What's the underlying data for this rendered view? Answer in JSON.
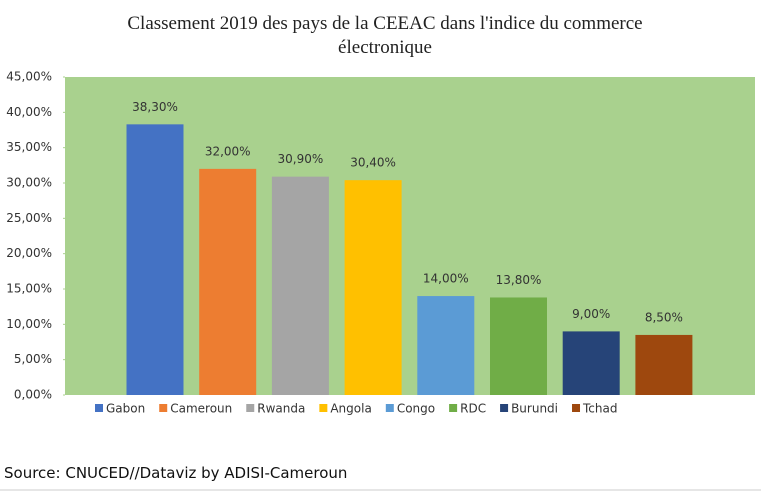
{
  "chart_data": {
    "type": "bar",
    "title": "Classement 2019 des pays de la CEEAC dans l'indice du commerce électronique",
    "categories": [
      "Gabon",
      "Cameroun",
      "Rwanda",
      "Angola",
      "Congo",
      "RDC",
      "Burundi",
      "Tchad"
    ],
    "values": [
      38.3,
      32.0,
      30.9,
      30.4,
      14.0,
      13.8,
      9.0,
      8.5
    ],
    "value_labels": [
      "38,30%",
      "32,00%",
      "30,90%",
      "30,40%",
      "14,00%",
      "13,80%",
      "9,00%",
      "8,50%"
    ],
    "colors": [
      "#4472c4",
      "#ed7d31",
      "#a5a5a5",
      "#ffc000",
      "#5b9bd5",
      "#70ad47",
      "#264478",
      "#9e480e"
    ],
    "ylim": [
      0,
      45
    ],
    "yticks": [
      {
        "value": 0,
        "label": "0,00%"
      },
      {
        "value": 5,
        "label": "5,00%"
      },
      {
        "value": 10,
        "label": "10,00%"
      },
      {
        "value": 15,
        "label": "15,00%"
      },
      {
        "value": 20,
        "label": "20,00%"
      },
      {
        "value": 25,
        "label": "25,00%"
      },
      {
        "value": 30,
        "label": "30,00%"
      },
      {
        "value": 35,
        "label": "35,00%"
      },
      {
        "value": 40,
        "label": "40,00%"
      },
      {
        "value": 45,
        "label": "45,00%"
      }
    ],
    "plot_background": "#a9d18e",
    "legend": "bottom",
    "source": "Source: CNUCED//Dataviz by ADISI-Cameroun"
  }
}
